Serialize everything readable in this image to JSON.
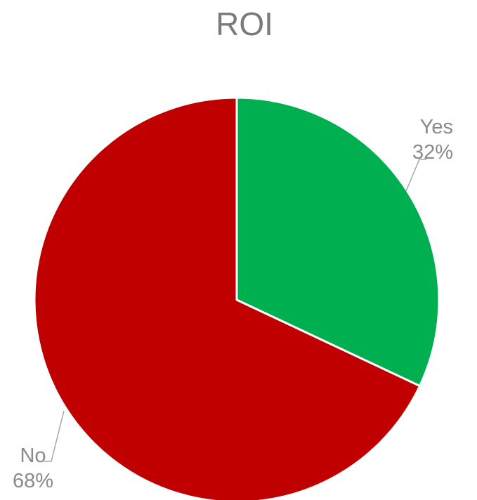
{
  "chart_data": {
    "type": "pie",
    "title": "ROI",
    "slices": [
      {
        "label": "Yes",
        "value": 32,
        "value_label": "32%",
        "color": "#00b050"
      },
      {
        "label": "No",
        "value": 68,
        "value_label": "68%",
        "color": "#c00000"
      }
    ],
    "start_angle_deg": 0,
    "direction": "clockwise",
    "slice_border_color": "#ffffff",
    "leader_line_color": "#a6a6a6",
    "legend": "none"
  }
}
